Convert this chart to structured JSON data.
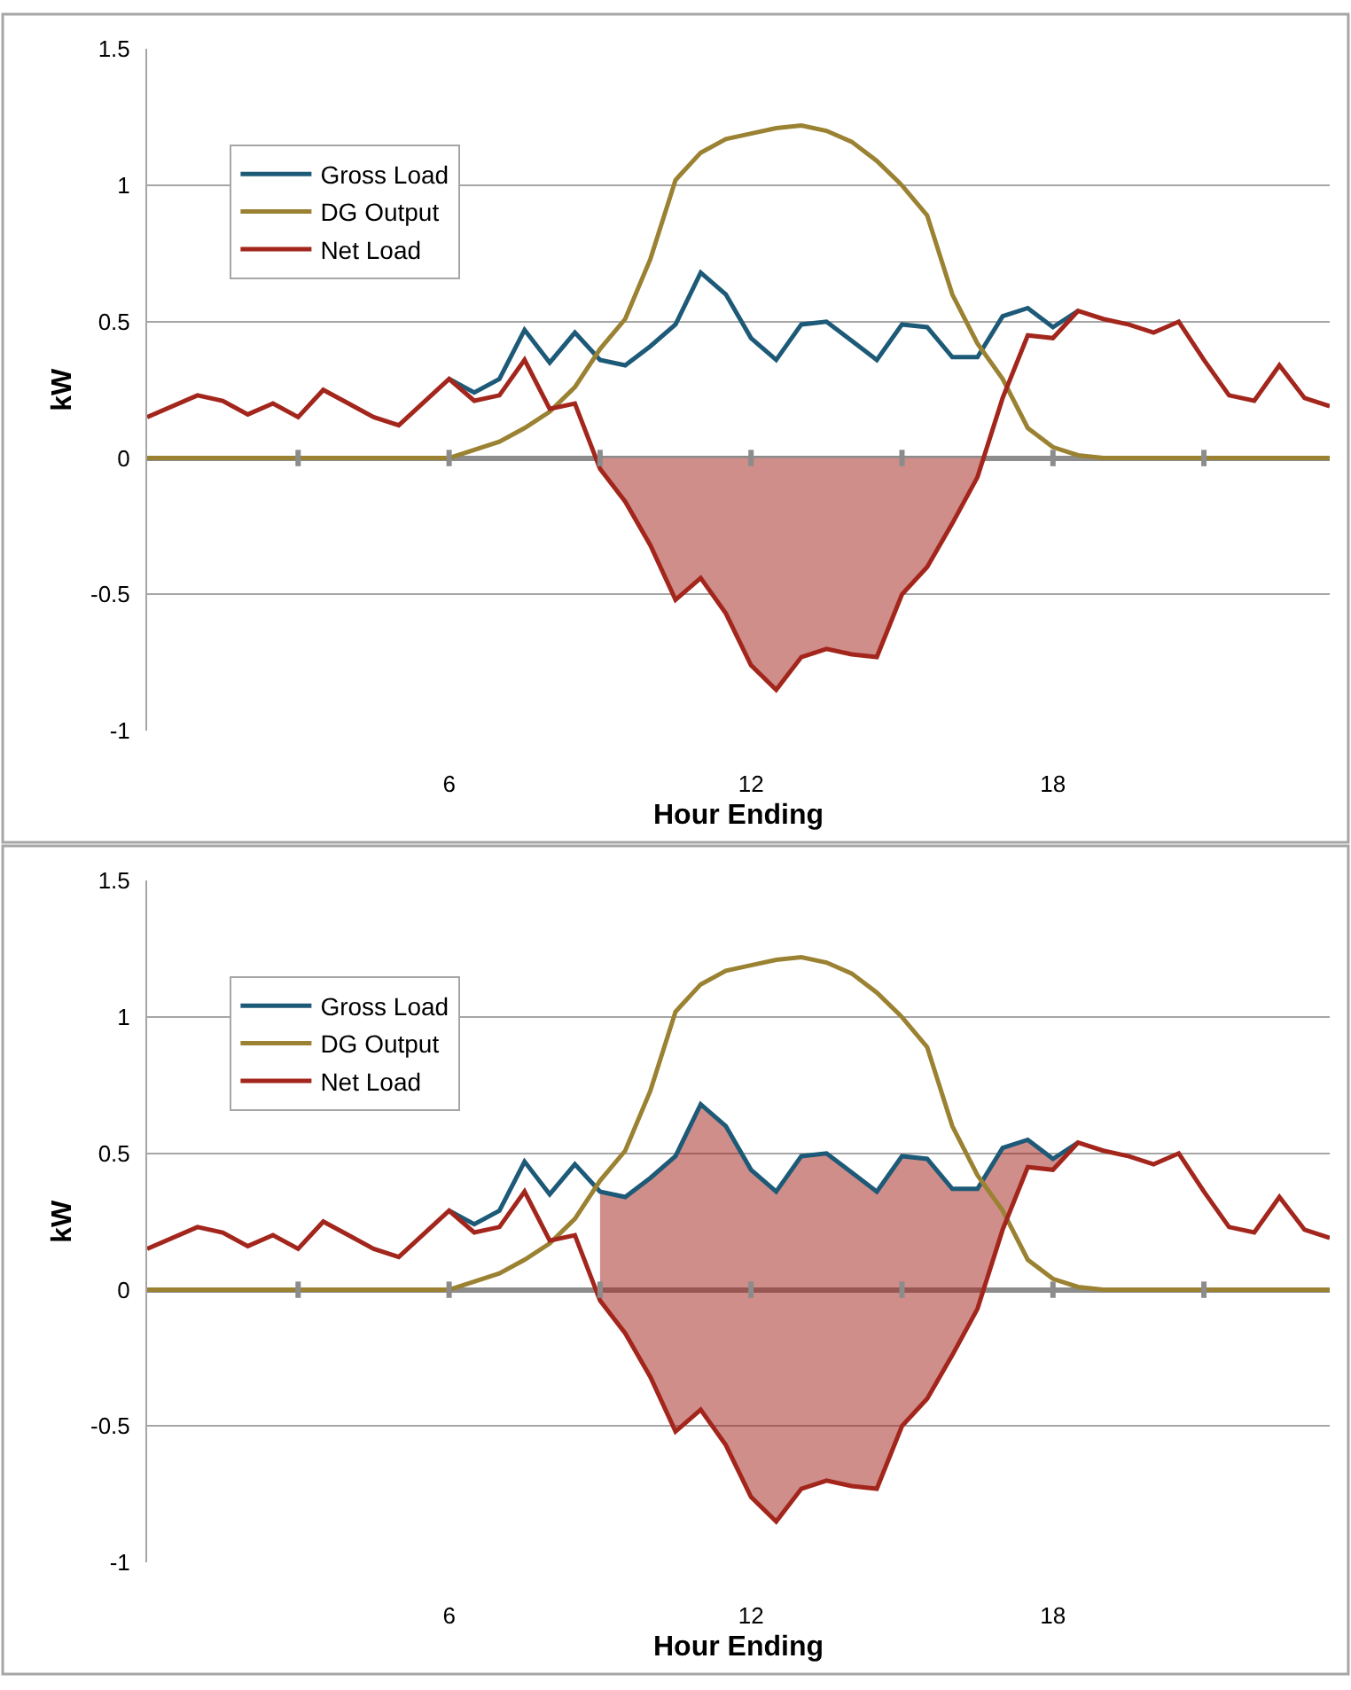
{
  "chart_data": [
    {
      "type": "line",
      "xlabel": "Hour Ending",
      "ylabel": "kW",
      "xlim": [
        0,
        23.5
      ],
      "ylim": [
        -1,
        1.5
      ],
      "xticks": [
        {
          "value": 3,
          "label": null
        },
        6,
        {
          "value": 9,
          "label": null
        },
        12,
        {
          "value": 15,
          "label": null
        },
        18,
        {
          "value": 21,
          "label": null
        }
      ],
      "yticks": [
        -1,
        -0.5,
        0,
        0.5,
        1,
        1.5
      ],
      "grid": "y",
      "legend": "top left",
      "series": [
        {
          "type": "area",
          "color": "#cf8e89",
          "x": [
            8.92,
            9,
            9.5,
            10,
            10.5,
            11,
            11.5,
            12,
            12.5,
            13,
            13.5,
            14,
            14.5,
            15,
            15.5,
            16,
            16.5,
            16.62
          ],
          "values": [
            0,
            -0.04,
            -0.16,
            -0.32,
            -0.52,
            -0.44,
            -0.57,
            -0.76,
            -0.85,
            -0.73,
            -0.7,
            -0.72,
            -0.73,
            -0.5,
            -0.4,
            -0.24,
            -0.07,
            0
          ]
        },
        {
          "name": "Gross Load",
          "color": "#1d5a78",
          "x": [
            6,
            6.5,
            7,
            7.5,
            8,
            8.5,
            9,
            9.5,
            10,
            10.5,
            11,
            11.5,
            12,
            12.5,
            13,
            13.5,
            14,
            14.5,
            15,
            15.5,
            16,
            16.5,
            17,
            17.5,
            18,
            18.5
          ],
          "values": [
            0.29,
            0.24,
            0.29,
            0.47,
            0.35,
            0.46,
            0.36,
            0.34,
            0.41,
            0.49,
            0.68,
            0.6,
            0.44,
            0.36,
            0.49,
            0.5,
            0.43,
            0.36,
            0.49,
            0.48,
            0.37,
            0.37,
            0.52,
            0.55,
            0.48,
            0.54
          ]
        },
        {
          "name": "DG Output",
          "color": "#9a8232",
          "x": [
            0,
            6,
            6.5,
            7,
            7.5,
            8,
            8.5,
            9,
            9.5,
            10,
            10.5,
            11,
            11.5,
            12,
            12.5,
            13,
            13.5,
            14,
            14.5,
            15,
            15.5,
            16,
            16.5,
            17,
            17.5,
            18,
            18.5,
            19,
            23.5
          ],
          "values": [
            0,
            0,
            0.03,
            0.06,
            0.11,
            0.17,
            0.26,
            0.4,
            0.51,
            0.73,
            1.02,
            1.12,
            1.17,
            1.19,
            1.21,
            1.22,
            1.2,
            1.16,
            1.09,
            1.0,
            0.89,
            0.6,
            0.42,
            0.29,
            0.11,
            0.04,
            0.01,
            0,
            0
          ]
        },
        {
          "name": "Net Load",
          "color": "#a3261d",
          "x": [
            0,
            1,
            1.5,
            2,
            2.5,
            3,
            3.5,
            4,
            4.5,
            5,
            6,
            6.5,
            7,
            7.5,
            8,
            8.5,
            9,
            9.5,
            10,
            10.5,
            11,
            11.5,
            12,
            12.5,
            13,
            13.5,
            14,
            14.5,
            15,
            15.5,
            16,
            16.5,
            17,
            17.5,
            18,
            18.5,
            19,
            19.5,
            20,
            20.5,
            21,
            21.5,
            22,
            22.5,
            23,
            23.5
          ],
          "values": [
            0.15,
            0.23,
            0.21,
            0.16,
            0.2,
            0.15,
            0.25,
            0.2,
            0.15,
            0.12,
            0.29,
            0.21,
            0.23,
            0.36,
            0.18,
            0.2,
            -0.04,
            -0.16,
            -0.32,
            -0.52,
            -0.44,
            -0.57,
            -0.76,
            -0.85,
            -0.73,
            -0.7,
            -0.72,
            -0.73,
            -0.5,
            -0.4,
            -0.24,
            -0.07,
            0.22,
            0.45,
            0.44,
            0.54,
            0.51,
            0.49,
            0.46,
            0.5,
            0.36,
            0.23,
            0.21,
            0.34,
            0.22,
            0.19
          ]
        }
      ]
    },
    {
      "type": "line",
      "xlabel": "Hour Ending",
      "ylabel": "kW",
      "xlim": [
        0,
        23.5
      ],
      "ylim": [
        -1,
        1.5
      ],
      "xticks": [
        {
          "value": 3,
          "label": null
        },
        6,
        {
          "value": 9,
          "label": null
        },
        12,
        {
          "value": 15,
          "label": null
        },
        18,
        {
          "value": 21,
          "label": null
        }
      ],
      "yticks": [
        -1,
        -0.5,
        0,
        0.5,
        1,
        1.5
      ],
      "grid": "y",
      "legend": "top left",
      "series": [
        {
          "name": "Gross Load",
          "color": "#1d5a78",
          "x": [
            6,
            6.5,
            7,
            7.5,
            8,
            8.5,
            9,
            9.5,
            10,
            10.5,
            11,
            11.5,
            12,
            12.5,
            13,
            13.5,
            14,
            14.5,
            15,
            15.5,
            16,
            16.5,
            17,
            17.5,
            18,
            18.5
          ],
          "values": [
            0.29,
            0.24,
            0.29,
            0.47,
            0.35,
            0.46,
            0.36,
            0.34,
            0.41,
            0.49,
            0.68,
            0.6,
            0.44,
            0.36,
            0.49,
            0.5,
            0.43,
            0.36,
            0.49,
            0.48,
            0.37,
            0.37,
            0.52,
            0.55,
            0.48,
            0.54
          ]
        },
        {
          "name": "DG Output",
          "color": "#9a8232",
          "x": [
            0,
            6,
            6.5,
            7,
            7.5,
            8,
            8.5,
            9,
            9.5,
            10,
            10.5,
            11,
            11.5,
            12,
            12.5,
            13,
            13.5,
            14,
            14.5,
            15,
            15.5,
            16,
            16.5,
            17,
            17.5,
            18,
            18.5,
            19,
            23.5
          ],
          "values": [
            0,
            0,
            0.03,
            0.06,
            0.11,
            0.17,
            0.26,
            0.4,
            0.51,
            0.73,
            1.02,
            1.12,
            1.17,
            1.19,
            1.21,
            1.22,
            1.2,
            1.16,
            1.09,
            1.0,
            0.89,
            0.6,
            0.42,
            0.29,
            0.11,
            0.04,
            0.01,
            0,
            0
          ]
        },
        {
          "name": "Net Load",
          "color": "#a3261d",
          "x": [
            0,
            1,
            1.5,
            2,
            2.5,
            3,
            3.5,
            4,
            4.5,
            5,
            6,
            6.5,
            7,
            7.5,
            8,
            8.5,
            9,
            9.5,
            10,
            10.5,
            11,
            11.5,
            12,
            12.5,
            13,
            13.5,
            14,
            14.5,
            15,
            15.5,
            16,
            16.5,
            17,
            17.5,
            18,
            18.5,
            19,
            19.5,
            20,
            20.5,
            21,
            21.5,
            22,
            22.5,
            23,
            23.5
          ],
          "values": [
            0.15,
            0.23,
            0.21,
            0.16,
            0.2,
            0.15,
            0.25,
            0.2,
            0.15,
            0.12,
            0.29,
            0.21,
            0.23,
            0.36,
            0.18,
            0.2,
            -0.04,
            -0.16,
            -0.32,
            -0.52,
            -0.44,
            -0.57,
            -0.76,
            -0.85,
            -0.73,
            -0.7,
            -0.72,
            -0.73,
            -0.5,
            -0.4,
            -0.24,
            -0.07,
            0.22,
            0.45,
            0.44,
            0.54,
            0.51,
            0.49,
            0.46,
            0.5,
            0.36,
            0.23,
            0.21,
            0.34,
            0.22,
            0.19
          ],
          "lower": [
            null,
            null,
            null,
            null,
            null,
            null,
            null,
            null,
            null,
            null,
            null,
            null,
            null,
            null,
            null,
            null,
            -0.04,
            -0.16,
            -0.32,
            -0.52,
            -0.44,
            -0.57,
            -0.76,
            -0.85,
            -0.73,
            -0.7,
            -0.72,
            -0.73,
            -0.5,
            -0.4,
            -0.24,
            -0.07,
            0.22,
            0.45,
            0.44,
            0.54,
            null,
            null,
            null,
            null,
            null,
            null,
            null,
            null,
            null,
            null
          ],
          "upper": [
            null,
            null,
            null,
            null,
            null,
            null,
            null,
            null,
            null,
            null,
            null,
            null,
            null,
            null,
            null,
            null,
            0.36,
            0.34,
            0.41,
            0.49,
            0.68,
            0.6,
            0.44,
            0.36,
            0.49,
            0.5,
            0.43,
            0.36,
            0.49,
            0.48,
            0.37,
            0.37,
            0.52,
            0.55,
            0.48,
            0.54,
            null,
            null,
            null,
            null,
            null,
            null,
            null,
            null,
            null,
            null
          ]
        }
      ]
    }
  ]
}
